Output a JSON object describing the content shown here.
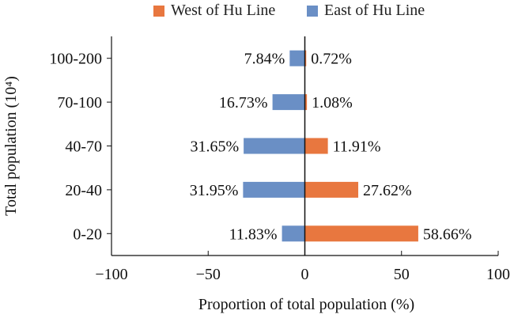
{
  "chart_data": {
    "type": "bar",
    "orientation": "horizontal",
    "categories": [
      "100-200",
      "70-100",
      "40-70",
      "20-40",
      "0-20"
    ],
    "series": [
      {
        "name": "West of Hu Line",
        "color": "#E8773F",
        "values": [
          0.72,
          1.08,
          11.91,
          27.62,
          58.66
        ],
        "labels": [
          "0.72%",
          "1.08%",
          "11.91%",
          "27.62%",
          "58.66%"
        ]
      },
      {
        "name": "East of Hu Line",
        "color": "#6A8FC5",
        "values": [
          -7.84,
          -16.73,
          -31.65,
          -31.95,
          -11.83
        ],
        "labels": [
          "7.84%",
          "16.73%",
          "31.65%",
          "31.95%",
          "11.83%"
        ]
      }
    ],
    "xlabel": "Proportion of total population (%)",
    "ylabel": "Total population (10⁴)",
    "xlim": [
      -100,
      100
    ],
    "xticks": [
      -100,
      -50,
      0,
      50,
      100
    ],
    "xtick_labels": [
      "−100",
      "−50",
      "0",
      "50",
      "100"
    ],
    "grid": false,
    "legend_position": "top"
  }
}
